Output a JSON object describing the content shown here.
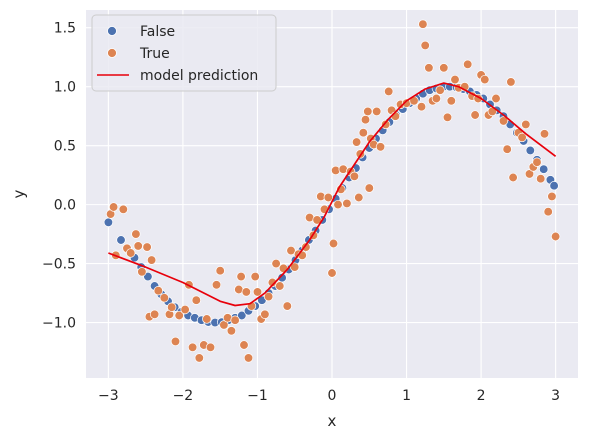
{
  "chart_data": {
    "type": "scatter",
    "xlabel": "x",
    "ylabel": "y",
    "xlim": [
      -3.3,
      3.3
    ],
    "ylim": [
      -1.47,
      1.65
    ],
    "xticks": [
      -3,
      -2,
      -1,
      0,
      1,
      2,
      3
    ],
    "xtick_labels": [
      "−3",
      "−2",
      "−1",
      "0",
      "1",
      "2",
      "3"
    ],
    "yticks": [
      -1.0,
      -0.5,
      0.0,
      0.5,
      1.0,
      1.5
    ],
    "ytick_labels": [
      "−1.0",
      "−0.5",
      "0.0",
      "0.5",
      "1.0",
      "1.5"
    ],
    "grid": true,
    "background": "#eaeaf2",
    "legend": {
      "placement": "top-left",
      "entries": [
        {
          "label": "False",
          "kind": "marker",
          "color": "#4c72b0"
        },
        {
          "label": "True",
          "kind": "marker",
          "color": "#dd8452"
        },
        {
          "label": "model prediction",
          "kind": "line",
          "color": "#e8000b"
        }
      ]
    },
    "series": [
      {
        "name": "False",
        "color": "#4c72b0",
        "points": [
          [
            -3.0,
            -0.15
          ],
          [
            -2.83,
            -0.3
          ],
          [
            -2.74,
            -0.38
          ],
          [
            -2.65,
            -0.45
          ],
          [
            -2.56,
            -0.53
          ],
          [
            -2.47,
            -0.61
          ],
          [
            -2.38,
            -0.69
          ],
          [
            -2.29,
            -0.76
          ],
          [
            -2.2,
            -0.82
          ],
          [
            -2.11,
            -0.87
          ],
          [
            -2.02,
            -0.91
          ],
          [
            -1.93,
            -0.94
          ],
          [
            -1.84,
            -0.96
          ],
          [
            -1.75,
            -0.98
          ],
          [
            -1.66,
            -0.995
          ],
          [
            -1.57,
            -1.0
          ],
          [
            -1.48,
            -0.997
          ],
          [
            -1.39,
            -0.98
          ],
          [
            -1.3,
            -0.96
          ],
          [
            -1.21,
            -0.94
          ],
          [
            -1.12,
            -0.9
          ],
          [
            -1.03,
            -0.86
          ],
          [
            -0.94,
            -0.81
          ],
          [
            -0.85,
            -0.75
          ],
          [
            -0.76,
            -0.69
          ],
          [
            -0.67,
            -0.62
          ],
          [
            -0.58,
            -0.55
          ],
          [
            -0.49,
            -0.47
          ],
          [
            -0.4,
            -0.39
          ],
          [
            -0.31,
            -0.3
          ],
          [
            -0.22,
            -0.22
          ],
          [
            -0.13,
            -0.13
          ],
          [
            -0.04,
            -0.04
          ],
          [
            0.05,
            0.05
          ],
          [
            0.14,
            0.14
          ],
          [
            0.23,
            0.23
          ],
          [
            0.32,
            0.31
          ],
          [
            0.41,
            0.4
          ],
          [
            0.5,
            0.48
          ],
          [
            0.59,
            0.56
          ],
          [
            0.68,
            0.63
          ],
          [
            0.77,
            0.7
          ],
          [
            0.86,
            0.76
          ],
          [
            0.95,
            0.81
          ],
          [
            1.04,
            0.86
          ],
          [
            1.13,
            0.9
          ],
          [
            1.22,
            0.94
          ],
          [
            1.31,
            0.97
          ],
          [
            1.4,
            0.985
          ],
          [
            1.49,
            0.997
          ],
          [
            1.58,
            1.0
          ],
          [
            1.67,
            0.995
          ],
          [
            1.76,
            0.98
          ],
          [
            1.85,
            0.96
          ],
          [
            1.94,
            0.93
          ],
          [
            2.03,
            0.9
          ],
          [
            2.12,
            0.85
          ],
          [
            2.21,
            0.8
          ],
          [
            2.3,
            0.75
          ],
          [
            2.39,
            0.68
          ],
          [
            2.48,
            0.61
          ],
          [
            2.57,
            0.54
          ],
          [
            2.66,
            0.46
          ],
          [
            2.75,
            0.38
          ],
          [
            2.84,
            0.3
          ],
          [
            2.93,
            0.21
          ],
          [
            2.98,
            0.16
          ]
        ]
      },
      {
        "name": "True",
        "color": "#dd8452",
        "points": [
          [
            -2.97,
            -0.08
          ],
          [
            -2.93,
            -0.02
          ],
          [
            -2.9,
            -0.43
          ],
          [
            -2.8,
            -0.04
          ],
          [
            -2.75,
            -0.37
          ],
          [
            -2.7,
            -0.41
          ],
          [
            -2.63,
            -0.25
          ],
          [
            -2.6,
            -0.35
          ],
          [
            -2.55,
            -0.57
          ],
          [
            -2.48,
            -0.36
          ],
          [
            -2.45,
            -0.95
          ],
          [
            -2.42,
            -0.47
          ],
          [
            -2.38,
            -0.93
          ],
          [
            -2.33,
            -0.73
          ],
          [
            -2.25,
            -0.79
          ],
          [
            -2.18,
            -0.93
          ],
          [
            -2.15,
            -0.87
          ],
          [
            -2.1,
            -1.16
          ],
          [
            -2.05,
            -0.94
          ],
          [
            -1.97,
            -0.89
          ],
          [
            -1.92,
            -0.68
          ],
          [
            -1.87,
            -1.21
          ],
          [
            -1.82,
            -0.81
          ],
          [
            -1.78,
            -1.3
          ],
          [
            -1.72,
            -1.19
          ],
          [
            -1.68,
            -0.97
          ],
          [
            -1.63,
            -1.21
          ],
          [
            -1.55,
            -0.68
          ],
          [
            -1.5,
            -0.56
          ],
          [
            -1.45,
            -1.02
          ],
          [
            -1.4,
            -0.96
          ],
          [
            -1.35,
            -1.07
          ],
          [
            -1.3,
            -0.98
          ],
          [
            -1.25,
            -0.72
          ],
          [
            -1.22,
            -0.61
          ],
          [
            -1.18,
            -1.19
          ],
          [
            -1.15,
            -0.74
          ],
          [
            -1.12,
            -1.3
          ],
          [
            -1.08,
            -0.86
          ],
          [
            -1.03,
            -0.61
          ],
          [
            -1.0,
            -0.74
          ],
          [
            -0.95,
            -0.97
          ],
          [
            -0.9,
            -0.93
          ],
          [
            -0.85,
            -0.78
          ],
          [
            -0.8,
            -0.66
          ],
          [
            -0.75,
            -0.5
          ],
          [
            -0.7,
            -0.69
          ],
          [
            -0.65,
            -0.54
          ],
          [
            -0.6,
            -0.86
          ],
          [
            -0.55,
            -0.39
          ],
          [
            -0.5,
            -0.53
          ],
          [
            -0.45,
            -0.42
          ],
          [
            -0.4,
            -0.43
          ],
          [
            -0.35,
            -0.36
          ],
          [
            -0.3,
            -0.11
          ],
          [
            -0.25,
            -0.26
          ],
          [
            -0.2,
            -0.13
          ],
          [
            -0.15,
            0.07
          ],
          [
            -0.1,
            -0.04
          ],
          [
            -0.05,
            0.06
          ],
          [
            0.0,
            -0.58
          ],
          [
            0.02,
            -0.33
          ],
          [
            0.05,
            0.29
          ],
          [
            0.08,
            0.0
          ],
          [
            0.12,
            0.13
          ],
          [
            0.15,
            0.3
          ],
          [
            0.2,
            0.01
          ],
          [
            0.25,
            0.28
          ],
          [
            0.3,
            0.24
          ],
          [
            0.33,
            0.53
          ],
          [
            0.36,
            0.06
          ],
          [
            0.38,
            0.43
          ],
          [
            0.42,
            0.61
          ],
          [
            0.45,
            0.72
          ],
          [
            0.48,
            0.79
          ],
          [
            0.5,
            0.14
          ],
          [
            0.52,
            0.56
          ],
          [
            0.56,
            0.51
          ],
          [
            0.6,
            0.79
          ],
          [
            0.65,
            0.49
          ],
          [
            0.72,
            0.68
          ],
          [
            0.76,
            0.96
          ],
          [
            0.8,
            0.8
          ],
          [
            0.85,
            0.75
          ],
          [
            0.92,
            0.85
          ],
          [
            1.0,
            0.86
          ],
          [
            1.1,
            0.88
          ],
          [
            1.2,
            0.83
          ],
          [
            1.22,
            1.53
          ],
          [
            1.25,
            1.35
          ],
          [
            1.3,
            1.16
          ],
          [
            1.35,
            0.88
          ],
          [
            1.4,
            0.9
          ],
          [
            1.45,
            0.97
          ],
          [
            1.5,
            1.16
          ],
          [
            1.55,
            0.74
          ],
          [
            1.6,
            0.88
          ],
          [
            1.65,
            1.06
          ],
          [
            1.7,
            0.99
          ],
          [
            1.78,
            1.0
          ],
          [
            1.82,
            1.19
          ],
          [
            1.88,
            0.92
          ],
          [
            1.92,
            0.76
          ],
          [
            1.96,
            0.9
          ],
          [
            2.0,
            1.1
          ],
          [
            2.05,
            1.06
          ],
          [
            2.1,
            0.76
          ],
          [
            2.15,
            0.79
          ],
          [
            2.2,
            0.9
          ],
          [
            2.3,
            0.71
          ],
          [
            2.35,
            0.47
          ],
          [
            2.4,
            1.04
          ],
          [
            2.43,
            0.23
          ],
          [
            2.5,
            0.61
          ],
          [
            2.55,
            0.57
          ],
          [
            2.6,
            0.68
          ],
          [
            2.65,
            0.26
          ],
          [
            2.7,
            0.32
          ],
          [
            2.75,
            0.36
          ],
          [
            2.8,
            0.22
          ],
          [
            2.85,
            0.6
          ],
          [
            2.9,
            -0.06
          ],
          [
            2.95,
            0.07
          ],
          [
            3.0,
            -0.27
          ]
        ]
      },
      {
        "name": "model prediction",
        "kind": "line",
        "color": "#e8000b",
        "points": [
          [
            -3.0,
            -0.41
          ],
          [
            -2.5,
            -0.53
          ],
          [
            -2.0,
            -0.66
          ],
          [
            -1.5,
            -0.82
          ],
          [
            -1.3,
            -0.855
          ],
          [
            -1.1,
            -0.84
          ],
          [
            -0.9,
            -0.75
          ],
          [
            -0.6,
            -0.55
          ],
          [
            -0.3,
            -0.3
          ],
          [
            -0.1,
            -0.1
          ],
          [
            0.1,
            0.15
          ],
          [
            0.3,
            0.34
          ],
          [
            0.5,
            0.53
          ],
          [
            0.75,
            0.72
          ],
          [
            1.0,
            0.88
          ],
          [
            1.25,
            0.98
          ],
          [
            1.5,
            1.03
          ],
          [
            1.7,
            1.0
          ],
          [
            2.0,
            0.9
          ],
          [
            2.3,
            0.76
          ],
          [
            2.6,
            0.6
          ],
          [
            3.0,
            0.41
          ]
        ]
      }
    ]
  }
}
